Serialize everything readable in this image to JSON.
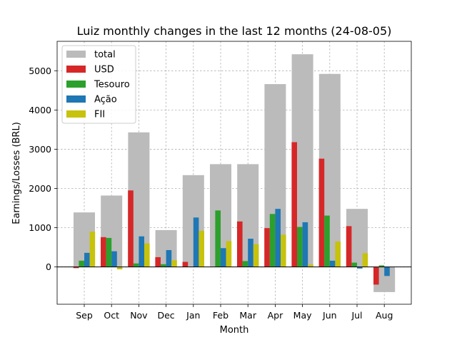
{
  "chart_data": {
    "type": "bar",
    "title": "Luiz monthly changes in the last 12 months (24-08-05)",
    "xlabel": "Month",
    "ylabel": "Earnings/Losses (BRL)",
    "ylim": [
      -950,
      5750
    ],
    "yticks": [
      0,
      1000,
      2000,
      3000,
      4000,
      5000
    ],
    "grid": true,
    "legend_position": "top-left",
    "categories": [
      "Sep",
      "Oct",
      "Nov",
      "Dec",
      "Jan",
      "Feb",
      "Mar",
      "Apr",
      "May",
      "Jun",
      "Jul",
      "Aug"
    ],
    "total": {
      "name": "total",
      "color": "#bbbbbb",
      "values": [
        1390,
        1820,
        3430,
        940,
        2340,
        2620,
        2620,
        4660,
        5420,
        4920,
        1480,
        -640
      ]
    },
    "series": [
      {
        "name": "USD",
        "color": "#d62728",
        "values": [
          -30,
          760,
          1950,
          250,
          130,
          0,
          1160,
          990,
          3180,
          2760,
          1040,
          -450
        ]
      },
      {
        "name": "Tesouro",
        "color": "#2ca02c",
        "values": [
          160,
          740,
          90,
          70,
          0,
          1440,
          150,
          1350,
          1020,
          1310,
          110,
          40
        ]
      },
      {
        "name": "Ação",
        "color": "#1f77b4",
        "values": [
          360,
          400,
          780,
          430,
          1260,
          480,
          720,
          1480,
          1140,
          160,
          -40,
          -230
        ]
      },
      {
        "name": "FII",
        "color": "#c7c20c",
        "values": [
          900,
          -60,
          600,
          170,
          920,
          660,
          580,
          820,
          60,
          650,
          350,
          0
        ]
      }
    ]
  }
}
